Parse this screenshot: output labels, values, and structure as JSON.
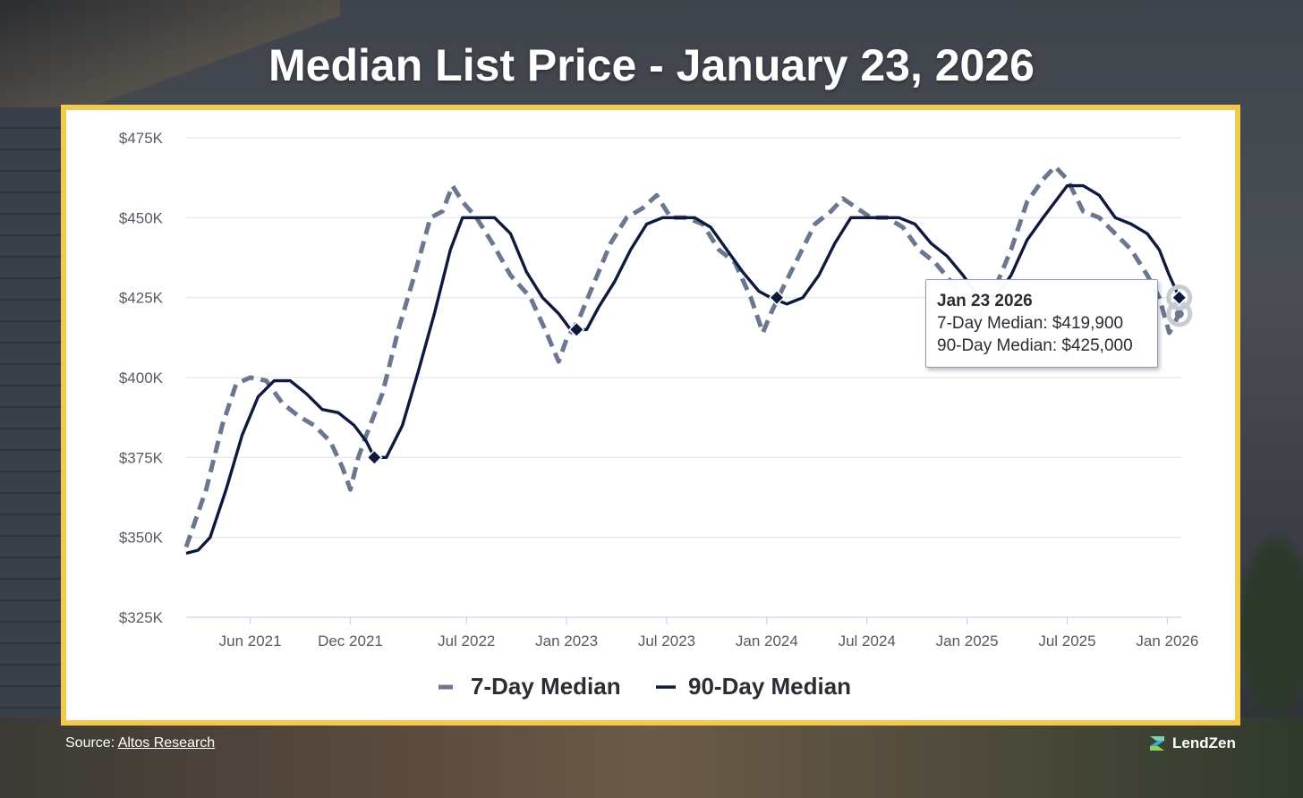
{
  "page": {
    "title": "Median List Price - January 23, 2026"
  },
  "colors": {
    "frame": "#f2c94c",
    "series_7day": "#6b778f",
    "series_90day": "#0e1a3d",
    "grid": "#e3e6ea"
  },
  "chart_data": {
    "type": "line",
    "title": "Median List Price - January 23, 2026",
    "xlabel": "",
    "ylabel": "",
    "y_ticks": [
      325000,
      350000,
      375000,
      400000,
      425000,
      450000,
      475000
    ],
    "y_tick_labels": [
      "$325K",
      "$350K",
      "$375K",
      "$400K",
      "$425K",
      "$450K",
      "$475K"
    ],
    "ylim": [
      325000,
      475000
    ],
    "x_ticks": [
      2021.42,
      2021.92,
      2022.5,
      2023.0,
      2023.5,
      2024.0,
      2024.5,
      2025.0,
      2025.5,
      2026.0
    ],
    "x_tick_labels": [
      "Jun 2021",
      "Dec 2021",
      "Jul 2022",
      "Jan 2023",
      "Jul 2023",
      "Jan 2024",
      "Jul 2024",
      "Jan 2025",
      "Jul 2025",
      "Jan 2026"
    ],
    "xlim": [
      2021.1,
      2026.07
    ],
    "series": [
      {
        "name": "7-Day Median",
        "style": "dashed",
        "points": [
          [
            2021.1,
            347000
          ],
          [
            2021.2,
            365000
          ],
          [
            2021.28,
            385000
          ],
          [
            2021.35,
            398000
          ],
          [
            2021.42,
            400000
          ],
          [
            2021.5,
            399000
          ],
          [
            2021.58,
            392000
          ],
          [
            2021.66,
            388000
          ],
          [
            2021.74,
            385000
          ],
          [
            2021.82,
            380000
          ],
          [
            2021.88,
            372000
          ],
          [
            2021.92,
            365000
          ],
          [
            2021.96,
            375000
          ],
          [
            2022.0,
            382000
          ],
          [
            2022.08,
            395000
          ],
          [
            2022.16,
            415000
          ],
          [
            2022.24,
            432000
          ],
          [
            2022.32,
            450000
          ],
          [
            2022.38,
            452000
          ],
          [
            2022.43,
            460000
          ],
          [
            2022.48,
            455000
          ],
          [
            2022.55,
            450000
          ],
          [
            2022.63,
            442000
          ],
          [
            2022.72,
            432000
          ],
          [
            2022.82,
            425000
          ],
          [
            2022.9,
            414000
          ],
          [
            2022.96,
            405000
          ],
          [
            2023.0,
            412000
          ],
          [
            2023.06,
            418000
          ],
          [
            2023.14,
            430000
          ],
          [
            2023.22,
            442000
          ],
          [
            2023.3,
            450000
          ],
          [
            2023.38,
            453000
          ],
          [
            2023.45,
            457000
          ],
          [
            2023.52,
            450000
          ],
          [
            2023.6,
            450000
          ],
          [
            2023.68,
            448000
          ],
          [
            2023.76,
            440000
          ],
          [
            2023.84,
            436000
          ],
          [
            2023.92,
            425000
          ],
          [
            2023.98,
            414000
          ],
          [
            2024.02,
            420000
          ],
          [
            2024.08,
            428000
          ],
          [
            2024.16,
            438000
          ],
          [
            2024.24,
            448000
          ],
          [
            2024.32,
            452000
          ],
          [
            2024.38,
            456000
          ],
          [
            2024.45,
            453000
          ],
          [
            2024.52,
            450000
          ],
          [
            2024.6,
            450000
          ],
          [
            2024.68,
            447000
          ],
          [
            2024.76,
            440000
          ],
          [
            2024.84,
            436000
          ],
          [
            2024.92,
            430000
          ],
          [
            2025.0,
            425000
          ],
          [
            2025.06,
            420000
          ],
          [
            2025.14,
            428000
          ],
          [
            2025.22,
            440000
          ],
          [
            2025.3,
            455000
          ],
          [
            2025.38,
            462000
          ],
          [
            2025.44,
            466000
          ],
          [
            2025.5,
            462000
          ],
          [
            2025.58,
            452000
          ],
          [
            2025.66,
            450000
          ],
          [
            2025.74,
            445000
          ],
          [
            2025.82,
            440000
          ],
          [
            2025.9,
            432000
          ],
          [
            2025.96,
            425000
          ],
          [
            2026.01,
            414000
          ],
          [
            2026.06,
            419900
          ]
        ]
      },
      {
        "name": "90-Day Median",
        "style": "solid",
        "points": [
          [
            2021.1,
            345000
          ],
          [
            2021.16,
            346000
          ],
          [
            2021.22,
            350000
          ],
          [
            2021.3,
            365000
          ],
          [
            2021.38,
            382000
          ],
          [
            2021.46,
            394000
          ],
          [
            2021.54,
            399000
          ],
          [
            2021.62,
            399000
          ],
          [
            2021.7,
            395000
          ],
          [
            2021.78,
            390000
          ],
          [
            2021.86,
            389000
          ],
          [
            2021.94,
            385000
          ],
          [
            2022.0,
            380000
          ],
          [
            2022.04,
            375000
          ],
          [
            2022.1,
            375000
          ],
          [
            2022.18,
            385000
          ],
          [
            2022.26,
            402000
          ],
          [
            2022.34,
            420000
          ],
          [
            2022.42,
            440000
          ],
          [
            2022.48,
            450000
          ],
          [
            2022.56,
            450000
          ],
          [
            2022.64,
            450000
          ],
          [
            2022.72,
            445000
          ],
          [
            2022.8,
            433000
          ],
          [
            2022.88,
            425000
          ],
          [
            2022.96,
            420000
          ],
          [
            2023.02,
            415000
          ],
          [
            2023.1,
            415000
          ],
          [
            2023.16,
            422000
          ],
          [
            2023.24,
            430000
          ],
          [
            2023.32,
            440000
          ],
          [
            2023.4,
            448000
          ],
          [
            2023.48,
            450000
          ],
          [
            2023.56,
            450000
          ],
          [
            2023.64,
            450000
          ],
          [
            2023.72,
            447000
          ],
          [
            2023.8,
            440000
          ],
          [
            2023.88,
            433000
          ],
          [
            2023.96,
            427000
          ],
          [
            2024.02,
            425000
          ],
          [
            2024.1,
            423000
          ],
          [
            2024.18,
            425000
          ],
          [
            2024.26,
            432000
          ],
          [
            2024.34,
            442000
          ],
          [
            2024.42,
            450000
          ],
          [
            2024.5,
            450000
          ],
          [
            2024.58,
            450000
          ],
          [
            2024.66,
            450000
          ],
          [
            2024.74,
            448000
          ],
          [
            2024.82,
            442000
          ],
          [
            2024.9,
            438000
          ],
          [
            2024.98,
            432000
          ],
          [
            2025.06,
            425000
          ],
          [
            2025.14,
            425000
          ],
          [
            2025.22,
            432000
          ],
          [
            2025.3,
            443000
          ],
          [
            2025.38,
            450000
          ],
          [
            2025.44,
            455000
          ],
          [
            2025.5,
            460000
          ],
          [
            2025.58,
            460000
          ],
          [
            2025.66,
            457000
          ],
          [
            2025.74,
            450000
          ],
          [
            2025.82,
            448000
          ],
          [
            2025.9,
            445000
          ],
          [
            2025.96,
            440000
          ],
          [
            2026.01,
            432000
          ],
          [
            2026.06,
            425000
          ]
        ]
      }
    ],
    "marked_points": [
      {
        "series": "90-Day Median",
        "x": 2022.04,
        "y": 375000
      },
      {
        "series": "90-Day Median",
        "x": 2023.05,
        "y": 415000
      },
      {
        "series": "90-Day Median",
        "x": 2024.05,
        "y": 425000
      },
      {
        "series": "90-Day Median",
        "x": 2026.06,
        "y": 425000
      }
    ],
    "legend": [
      "7-Day Median",
      "90-Day Median"
    ],
    "legend_position": "bottom-center",
    "grid": true,
    "tooltip": {
      "title": "Jan 23 2026",
      "line1": "7-Day Median: $419,900",
      "line2": "90-Day Median: $425,000"
    }
  },
  "footer": {
    "source_prefix": "Source: ",
    "source_link": "Altos Research",
    "brand": "LendZen"
  }
}
